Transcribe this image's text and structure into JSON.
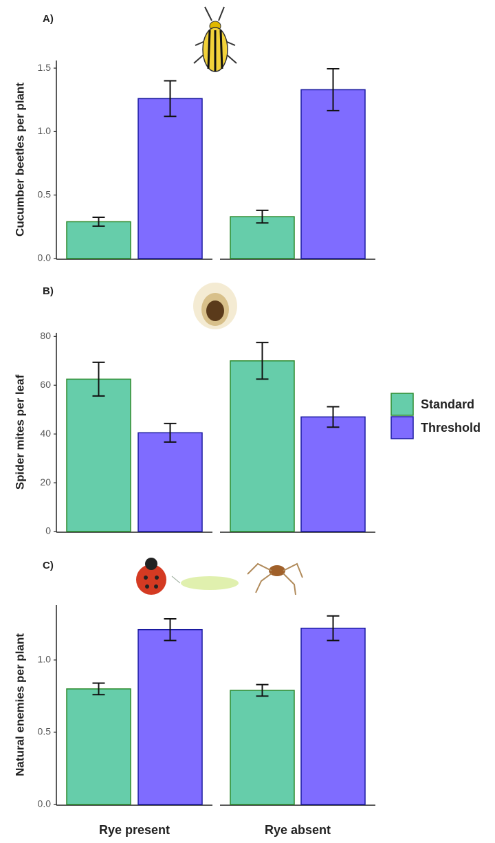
{
  "chart_data": [
    {
      "type": "bar",
      "panel_label": "A)",
      "y_label": "Cucumber beetles per plant",
      "series": [
        {
          "name": "Standard",
          "color": "#66cdaa",
          "edgecolor": "#2e8b2e",
          "values": [
            0.29,
            0.33
          ],
          "errors": [
            0.035,
            0.05
          ]
        },
        {
          "name": "Threshold",
          "color": "#7f6cff",
          "edgecolor": "#1a1aa0",
          "values": [
            1.26,
            1.33
          ],
          "errors": [
            0.14,
            0.165
          ]
        }
      ],
      "ylim": [
        0,
        1.56
      ],
      "yticks": [
        {
          "value": 0,
          "label": "0.0"
        },
        0.5,
        {
          "value": 1,
          "label": "1.0"
        },
        1.5
      ]
    },
    {
      "type": "bar",
      "panel_label": "B)",
      "y_label": "Spider mites per leaf",
      "series": [
        {
          "name": "Standard",
          "color": "#66cdaa",
          "edgecolor": "#2e8b2e",
          "values": [
            62.5,
            70
          ],
          "errors": [
            6.9,
            7.5
          ]
        },
        {
          "name": "Threshold",
          "color": "#7f6cff",
          "edgecolor": "#1a1aa0",
          "values": [
            40.5,
            47
          ],
          "errors": [
            3.8,
            4.2
          ]
        }
      ],
      "ylim": [
        0,
        81.5
      ],
      "yticks": [
        0,
        20,
        40,
        60,
        80
      ]
    },
    {
      "type": "bar",
      "panel_label": "C)",
      "y_label": "Natural enemies per plant",
      "categories": [
        "Rye present",
        "Rye absent"
      ],
      "series": [
        {
          "name": "Standard",
          "color": "#66cdaa",
          "edgecolor": "#2e8b2e",
          "values": [
            0.8,
            0.79
          ],
          "errors": [
            0.04,
            0.04
          ]
        },
        {
          "name": "Threshold",
          "color": "#7f6cff",
          "edgecolor": "#1a1aa0",
          "values": [
            1.21,
            1.22
          ],
          "errors": [
            0.075,
            0.085
          ]
        }
      ],
      "ylim": [
        0,
        1.38
      ],
      "yticks": [
        {
          "value": 0,
          "label": "0.0"
        },
        0.5,
        {
          "value": 1,
          "label": "1.0"
        }
      ]
    }
  ]
}
